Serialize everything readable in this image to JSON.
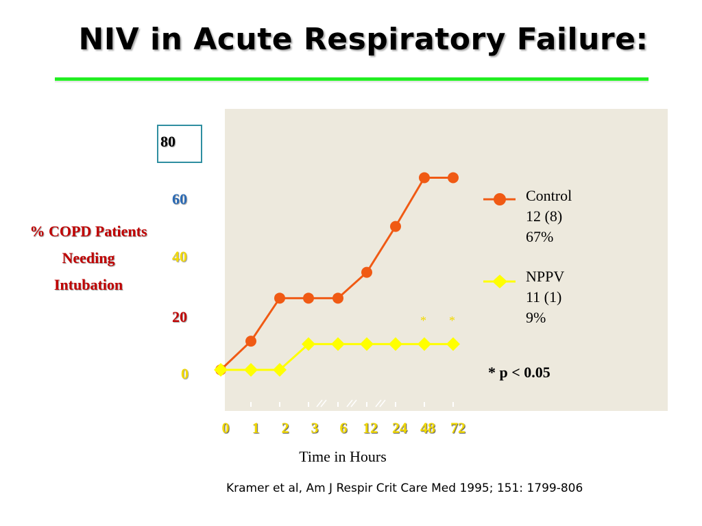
{
  "title": "NIV in Acute Respiratory Failure:",
  "citation": "Kramer et al, Am J Respir Crit Care Med 1995; 151: 1799-806",
  "p_note": "* p < 0.05",
  "chart_data": {
    "type": "line",
    "ylabel_lines": [
      "% COPD Patients",
      "Needing",
      "Intubation"
    ],
    "xlabel": "Time in Hours",
    "categories": [
      "0",
      "1",
      "2",
      "3",
      "6",
      "12",
      "24",
      "48",
      "72"
    ],
    "yticks": [
      "80",
      "60",
      "40",
      "20",
      "0"
    ],
    "ylim": [
      0,
      80
    ],
    "series": [
      {
        "name": "Control",
        "legend_lines": [
          "Control",
          "12 (8)",
          "67%"
        ],
        "color": "#f05a14",
        "marker": "circle",
        "values": [
          0,
          10,
          25,
          25,
          25,
          34,
          50,
          67,
          67
        ]
      },
      {
        "name": "NPPV",
        "legend_lines": [
          "NPPV",
          "11 (1)",
          "9%"
        ],
        "color": "#ffff00",
        "marker": "diamond",
        "values": [
          0,
          0,
          0,
          9,
          9,
          9,
          9,
          9,
          9
        ]
      }
    ],
    "significance_markers": [
      "*",
      "*"
    ],
    "significant_categories": [
      "48",
      "72"
    ],
    "colors": {
      "ytick_80": "#000000",
      "ytick_60": "#2a6ab5",
      "ytick_40": "#f2d900",
      "ytick_20": "#c00000",
      "ytick_0": "#f2d900",
      "ylabel": "#c00000",
      "plot_background": "#ede9dd",
      "title_rule": "#22ee22"
    }
  }
}
